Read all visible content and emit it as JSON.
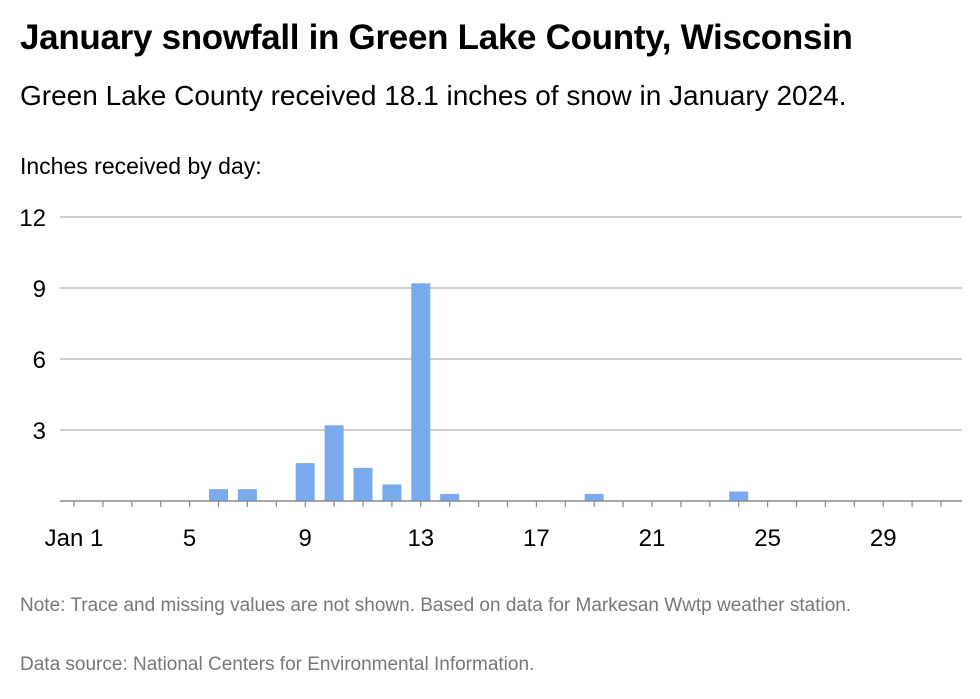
{
  "header": {
    "title": "January snowfall in Green Lake County, Wisconsin",
    "subtitle": "Green Lake County received 18.1 inches of snow in January 2024."
  },
  "footer": {
    "note": "Note: Trace and missing values are not shown. Based on data for Markesan Wwtp weather station.",
    "source": "Data source: National Centers for Environmental Information."
  },
  "colors": {
    "bar": "#7aaaee",
    "grid": "#b0b0b0",
    "axis": "#888888",
    "muted_text": "#777777"
  },
  "chart_data": {
    "type": "bar",
    "ylabel": "Inches received by day:",
    "x_tick_labels": [
      "Jan 1",
      "5",
      "9",
      "13",
      "17",
      "21",
      "25",
      "29"
    ],
    "x_tick_days": [
      1,
      5,
      9,
      13,
      17,
      21,
      25,
      29
    ],
    "y_ticks": [
      3,
      6,
      9,
      12
    ],
    "ylim": [
      0,
      12
    ],
    "xlim_days": [
      1,
      31
    ],
    "grid": true,
    "days": [
      1,
      2,
      3,
      4,
      5,
      6,
      7,
      8,
      9,
      10,
      11,
      12,
      13,
      14,
      15,
      16,
      17,
      18,
      19,
      20,
      21,
      22,
      23,
      24,
      25,
      26,
      27,
      28,
      29,
      30,
      31
    ],
    "values": [
      0,
      0,
      0,
      0,
      0,
      0.5,
      0.5,
      0,
      1.6,
      3.2,
      1.4,
      0.7,
      9.2,
      0.3,
      0,
      0,
      0,
      0,
      0.3,
      0,
      0,
      0,
      0,
      0.4,
      0,
      0,
      0,
      0,
      0,
      0,
      0
    ]
  }
}
